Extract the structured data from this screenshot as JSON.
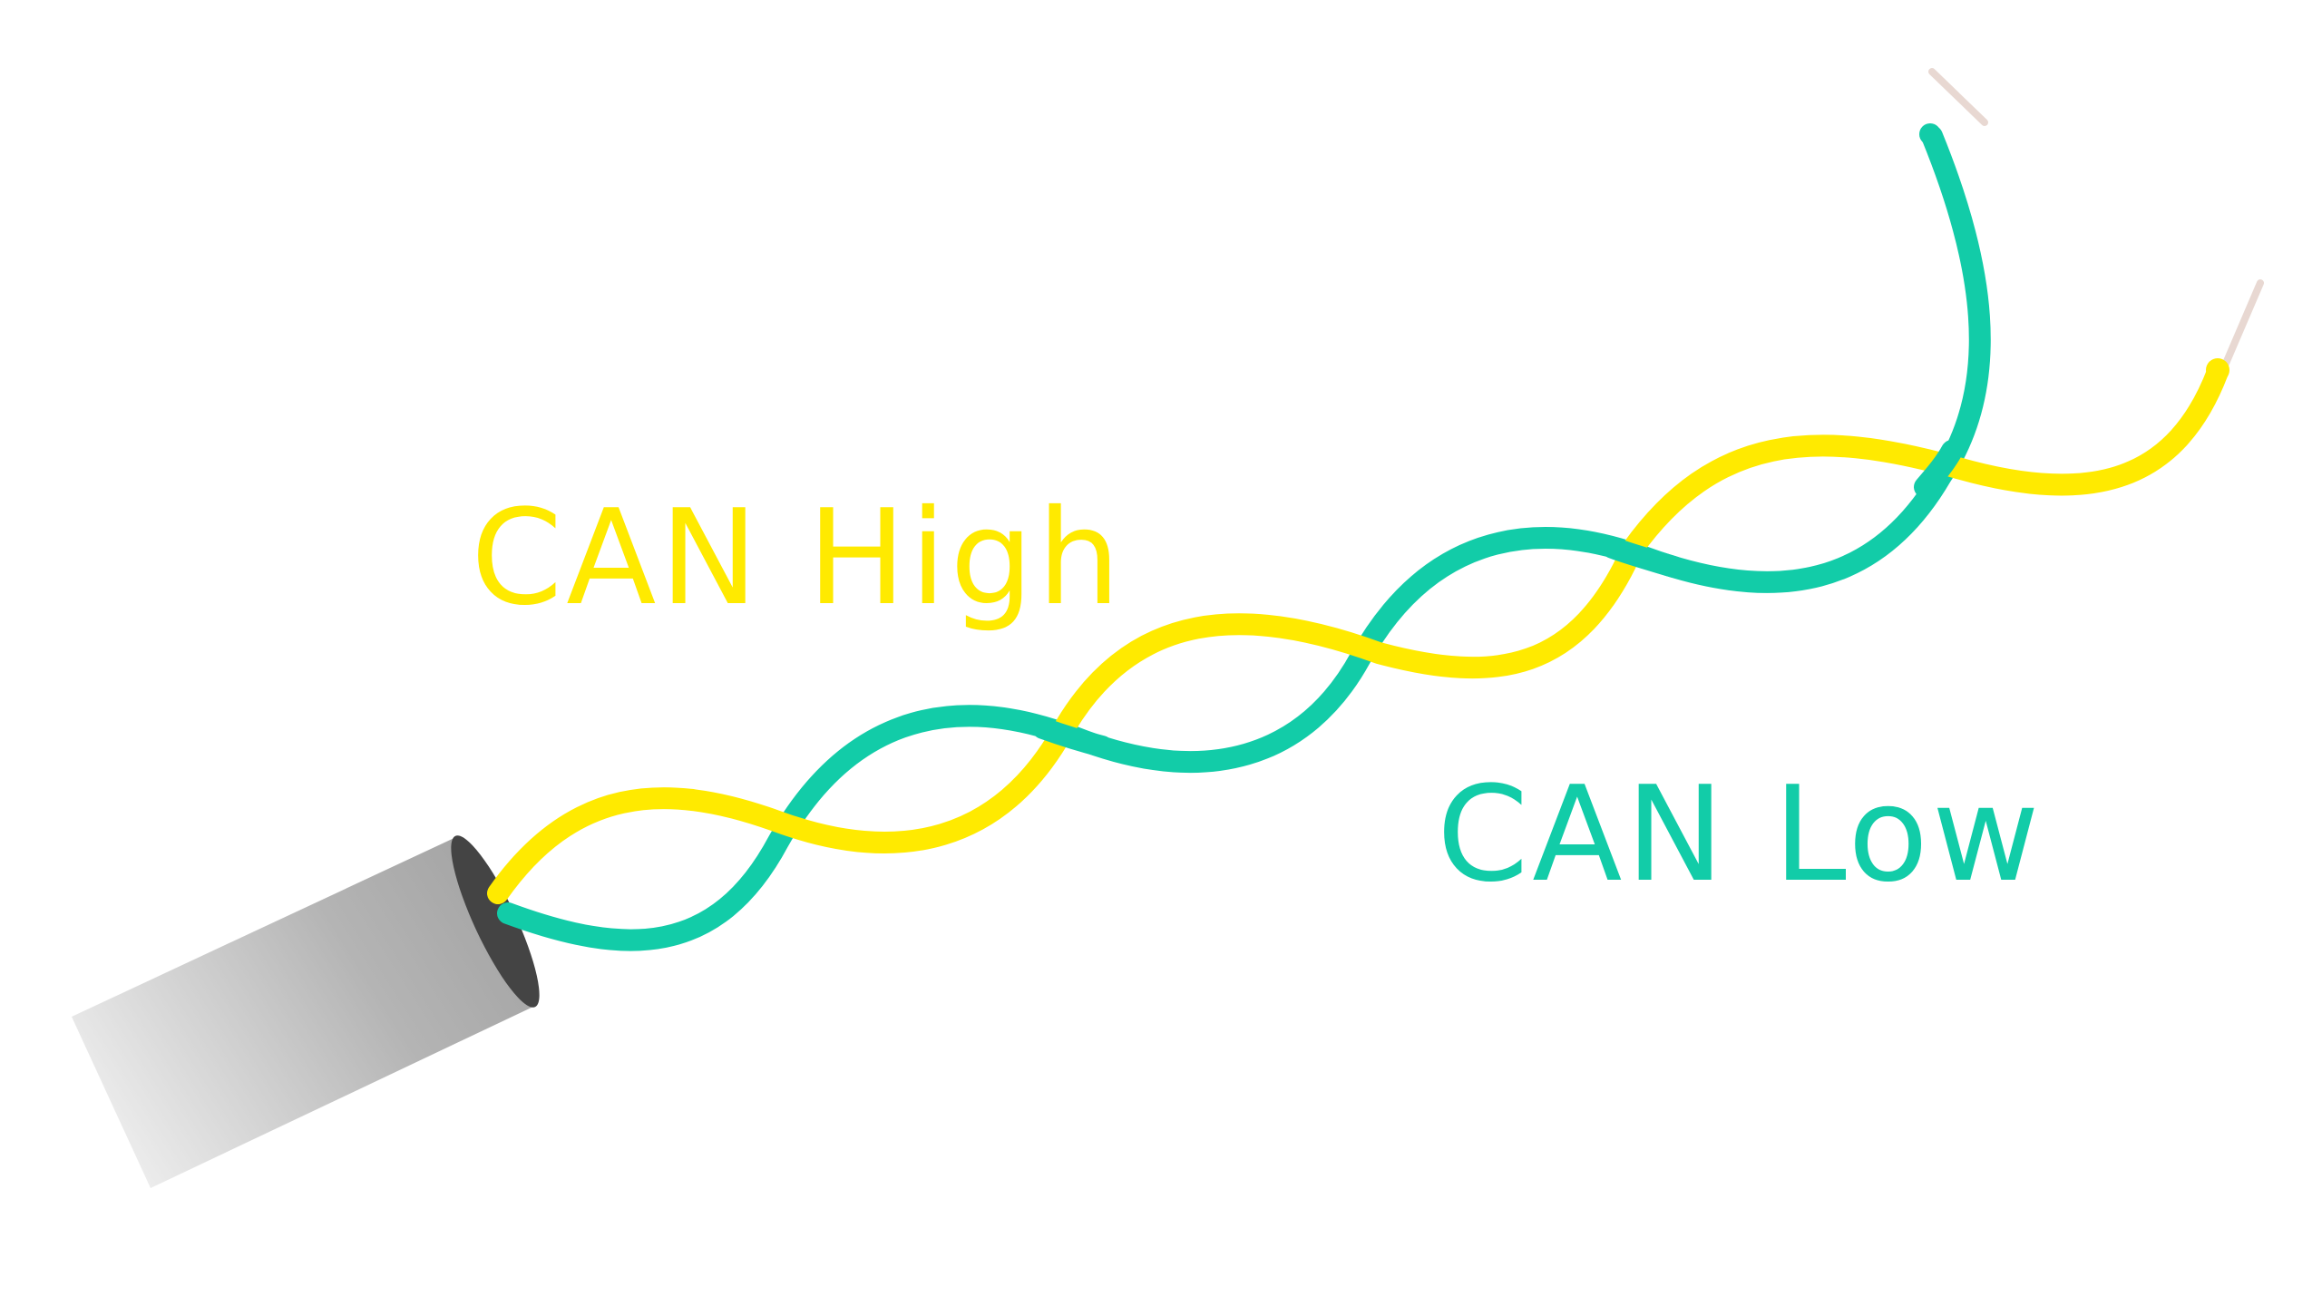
{
  "labels": {
    "can_high": "CAN High",
    "can_low": "CAN Low"
  },
  "colors": {
    "can_high": "#ffea00",
    "can_low": "#12cca8",
    "bare_conductor": "#e8d8d2",
    "cable_jacket_light": "#eeeeee",
    "cable_jacket_dark": "#a4a4a4",
    "cable_end": "#444444",
    "background": "#ffffff"
  }
}
